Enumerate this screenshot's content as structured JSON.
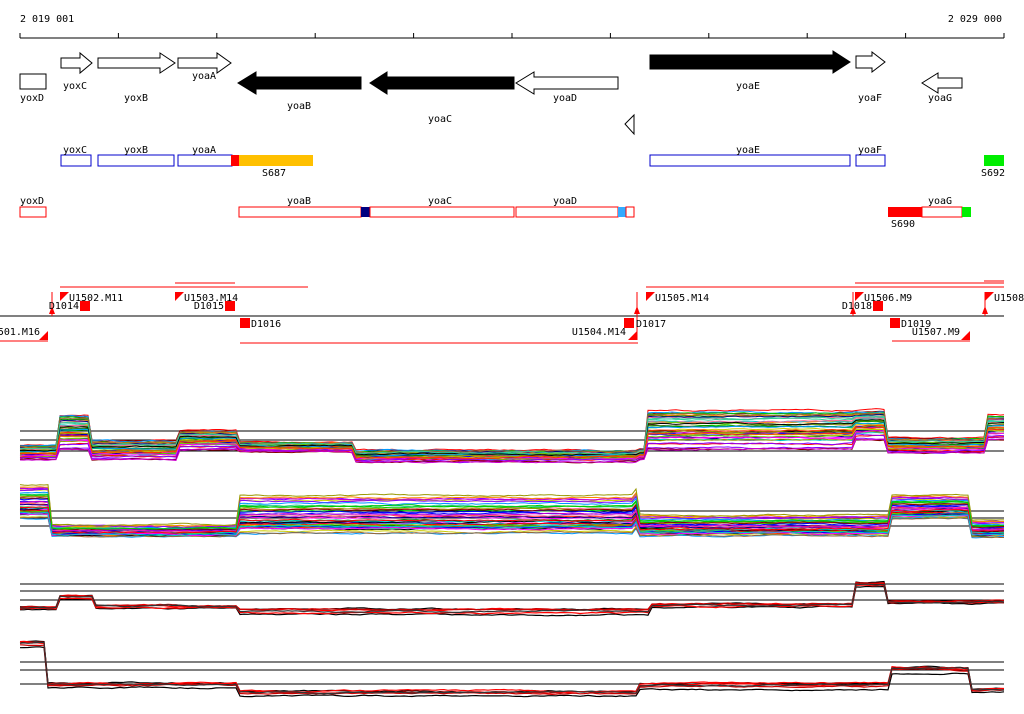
{
  "axis": {
    "start_label": "2 019 001",
    "end_label": "2 029 000"
  },
  "genes_top": [
    {
      "name": "yoxD",
      "strand": "-",
      "filled": false
    },
    {
      "name": "yoxC",
      "strand": "+",
      "filled": false
    },
    {
      "name": "yoxB",
      "strand": "+",
      "filled": false
    },
    {
      "name": "yoaA",
      "strand": "+",
      "filled": false
    },
    {
      "name": "yoaB",
      "strand": "-",
      "filled": true
    },
    {
      "name": "yoaC",
      "strand": "-",
      "filled": true
    },
    {
      "name": "yoaD",
      "strand": "-",
      "filled": false
    },
    {
      "name": "yoaE",
      "strand": "+",
      "filled": true
    },
    {
      "name": "yoaF",
      "strand": "+",
      "filled": false
    },
    {
      "name": "yoaG",
      "strand": "-",
      "filled": false
    }
  ],
  "fwd_boxes": [
    "yoxC",
    "yoxB",
    "yoaA",
    "yoaE",
    "yoaF"
  ],
  "rev_boxes": [
    "yoxD",
    "yoaB",
    "yoaC",
    "yoaD",
    "yoaG"
  ],
  "segments": [
    {
      "name": "S687",
      "color": "#ffc000"
    },
    {
      "name": "S692",
      "color": "#00ee00"
    },
    {
      "name": "S690",
      "color": "#ff0000"
    }
  ],
  "features_upper": [
    "U1502.M11",
    "U1503.M14",
    "U1505.M14",
    "U1506.M9",
    "U1508"
  ],
  "features_lower": [
    "501.M16",
    "U1504.M14",
    "U1507.M9"
  ],
  "d_markers": [
    "D1014",
    "D1015",
    "D1016",
    "D1017",
    "D1018",
    "D1019"
  ],
  "colors": {
    "red": "#ff0000",
    "blue": "#0000cc",
    "navy": "#000080",
    "light_blue": "#33aaff",
    "green": "#00ee00"
  }
}
